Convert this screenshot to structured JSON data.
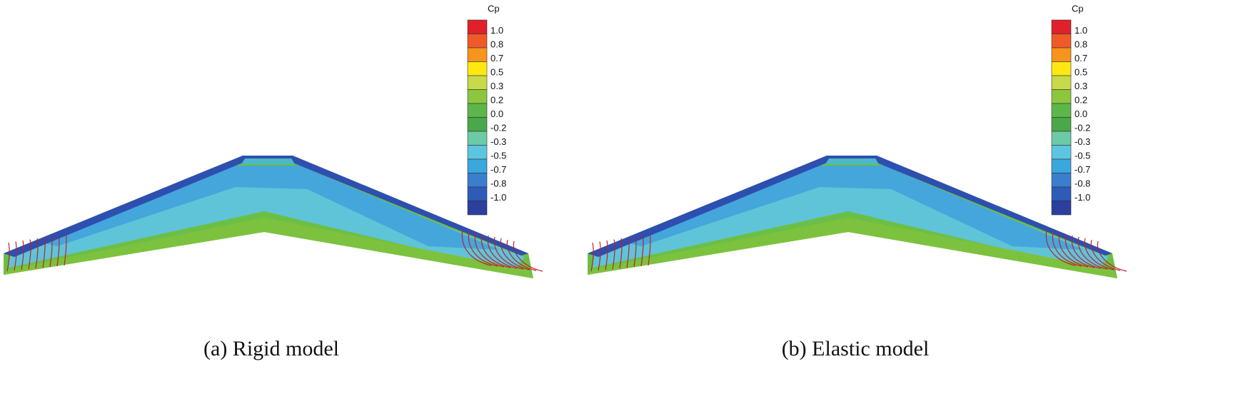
{
  "panels": [
    {
      "colorbar": {
        "title": "Cp",
        "labels": [
          "1.0",
          "0.8",
          "0.7",
          "0.5",
          "0.3",
          "0.2",
          "0.0",
          "-0.2",
          "-0.3",
          "-0.5",
          "-0.7",
          "-0.8",
          "-1.0"
        ]
      },
      "caption": "(a) Rigid model"
    },
    {
      "colorbar": {
        "title": "Cp",
        "labels": [
          "1.0",
          "0.8",
          "0.7",
          "0.5",
          "0.3",
          "0.2",
          "0.0",
          "-0.2",
          "-0.3",
          "-0.5",
          "-0.7",
          "-0.8",
          "-1.0"
        ]
      },
      "caption": "(b) Elastic model"
    }
  ]
}
